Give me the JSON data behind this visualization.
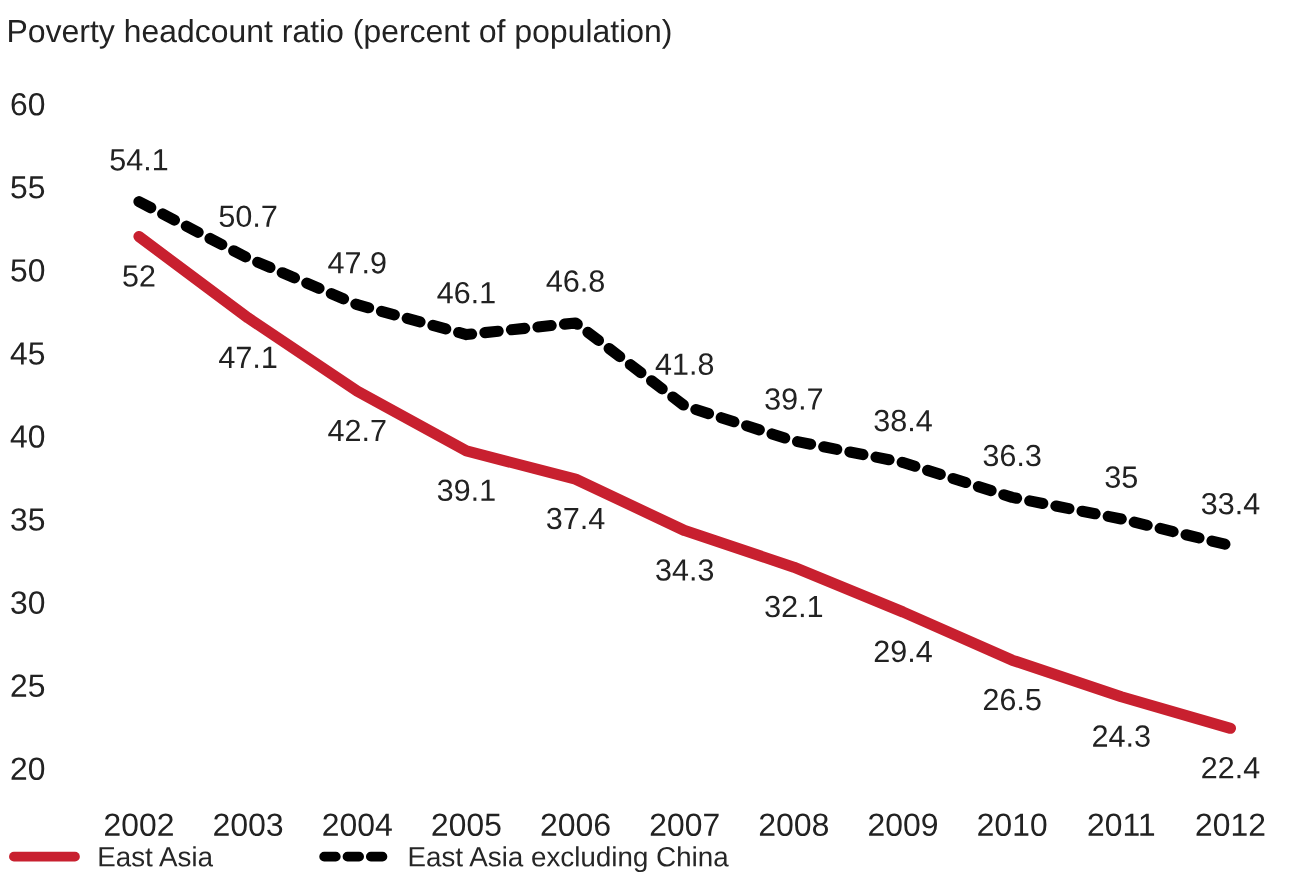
{
  "chart_data": {
    "type": "line",
    "title": "Poverty headcount ratio (percent of population)",
    "categories": [
      "2002",
      "2003",
      "2004",
      "2005",
      "2006",
      "2007",
      "2008",
      "2009",
      "2010",
      "2011",
      "2012"
    ],
    "series": [
      {
        "name": "East Asia",
        "color": "#c8202f",
        "line_style": "solid",
        "values": [
          52,
          47.1,
          42.7,
          39.1,
          37.4,
          34.3,
          32.1,
          29.4,
          26.5,
          24.3,
          22.4
        ]
      },
      {
        "name": "East Asia excluding China",
        "color": "#000000",
        "line_style": "dotted",
        "values": [
          54.1,
          50.7,
          47.9,
          46.1,
          46.8,
          41.8,
          39.7,
          38.4,
          36.3,
          35,
          33.4
        ]
      }
    ],
    "ylim": [
      20,
      60
    ],
    "yticks": [
      20,
      25,
      30,
      35,
      40,
      45,
      50,
      55,
      60
    ],
    "data_labels": true,
    "grid": false,
    "legend": "bottom left",
    "marker": "none"
  }
}
